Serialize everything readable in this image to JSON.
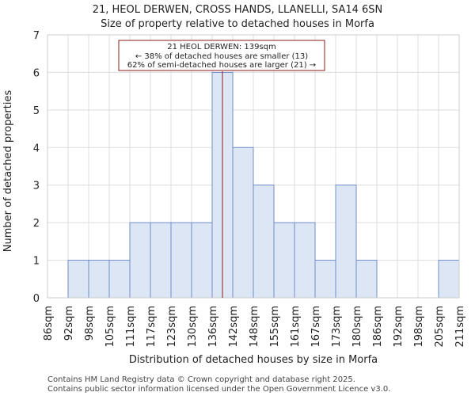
{
  "chart_data": {
    "type": "bar",
    "title": "21, HEOL DERWEN, CROSS HANDS, LLANELLI, SA14 6SN",
    "subtitle": "Size of property relative to detached houses in Morfa",
    "xlabel": "Distribution of detached houses by size in Morfa",
    "ylabel": "Number of detached properties",
    "ylim": [
      0,
      7
    ],
    "yticks": [
      "0",
      "1",
      "2",
      "3",
      "4",
      "5",
      "6",
      "7"
    ],
    "bin_labels": [
      "86sqm",
      "92sqm",
      "98sqm",
      "105sqm",
      "111sqm",
      "117sqm",
      "123sqm",
      "130sqm",
      "136sqm",
      "142sqm",
      "148sqm",
      "155sqm",
      "161sqm",
      "167sqm",
      "173sqm",
      "180sqm",
      "186sqm",
      "192sqm",
      "198sqm",
      "205sqm",
      "211sqm"
    ],
    "values": [
      0,
      1,
      1,
      1,
      2,
      2,
      2,
      2,
      6,
      4,
      3,
      2,
      2,
      1,
      3,
      1,
      0,
      0,
      0,
      1
    ],
    "marker_value": 139,
    "bar_fill": "#dce6f5",
    "bar_stroke": "#6e8ec8",
    "marker_color": "#8b1a1a",
    "grid": true,
    "annotation": {
      "line1": "21 HEOL DERWEN: 139sqm",
      "line2": "← 38% of detached houses are smaller (13)",
      "line3": "62% of semi-detached houses are larger (21) →"
    }
  },
  "footer": {
    "line1": "Contains HM Land Registry data © Crown copyright and database right 2025.",
    "line2": "Contains public sector information licensed under the Open Government Licence v3.0."
  }
}
